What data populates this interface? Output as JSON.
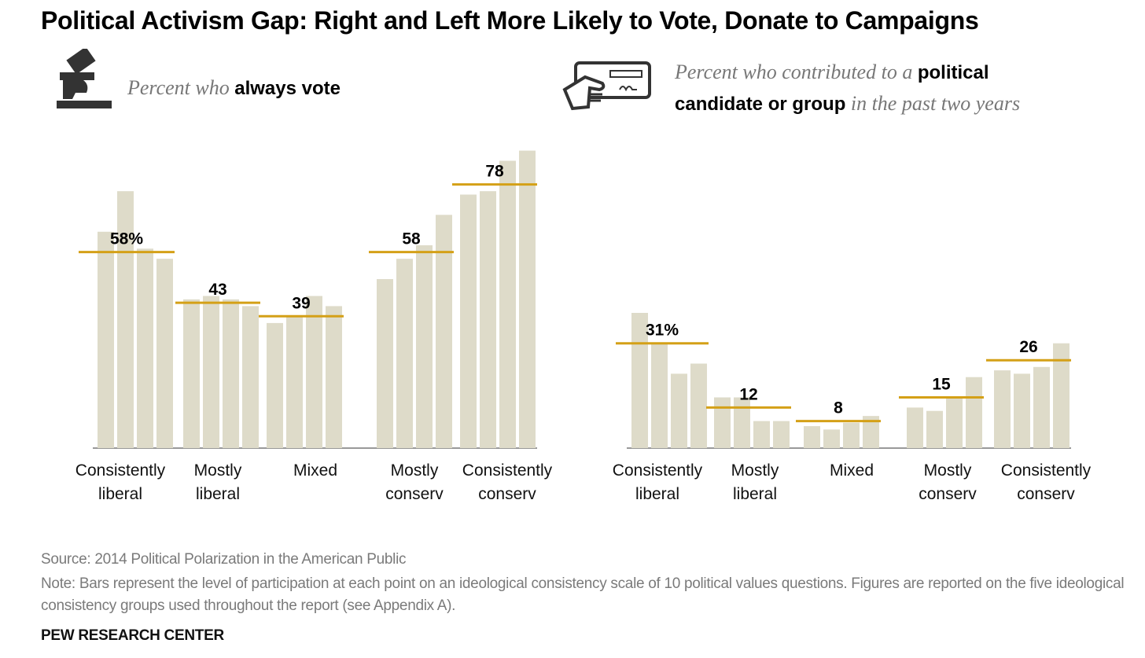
{
  "title": "Political Activism Gap: Right and Left More Likely to Vote, Donate to Campaigns",
  "icons": {
    "left": "ballot-vote-icon",
    "right": "check-contribution-icon"
  },
  "colors": {
    "bar": "#dedbc9",
    "highlight": "#d4a017",
    "axis": "#999999",
    "foot": "#7a7a7a"
  },
  "subtitles": {
    "left": {
      "pre": "Percent who ",
      "bold": "always vote"
    },
    "right": {
      "pre": "Percent who contributed to a ",
      "bold1": "political",
      "bold2": "candidate or group",
      "post": " in the past two years"
    }
  },
  "chart_data": [
    {
      "type": "bar",
      "title": "Percent who always vote",
      "groups": [
        {
          "label": [
            "Consistently",
            "liberal"
          ],
          "value_label": "58%",
          "value": 58,
          "bars": [
            64,
            76,
            59,
            56
          ]
        },
        {
          "label": [
            "Mostly",
            "liberal"
          ],
          "value_label": "43",
          "value": 43,
          "bars": [
            44,
            45,
            44,
            42
          ]
        },
        {
          "label": [
            "Mixed"
          ],
          "value_label": "39",
          "value": 39,
          "bars": [
            37,
            39,
            45,
            42
          ]
        },
        {
          "label": [
            "Mostly",
            "conserv"
          ],
          "value_label": "58",
          "value": 58,
          "bars": [
            50,
            56,
            60,
            69
          ]
        },
        {
          "label": [
            "Consistently",
            "conserv"
          ],
          "value_label": "78",
          "value": 78,
          "bars": [
            75,
            76,
            85,
            88
          ]
        }
      ]
    },
    {
      "type": "bar",
      "title": "Percent who contributed to a political candidate or group in the past two years",
      "groups": [
        {
          "label": [
            "Consistently",
            "liberal"
          ],
          "value_label": "31%",
          "value": 31,
          "bars": [
            40,
            31,
            22,
            25
          ]
        },
        {
          "label": [
            "Mostly",
            "liberal"
          ],
          "value_label": "12",
          "value": 12,
          "bars": [
            15,
            15,
            8,
            8
          ]
        },
        {
          "label": [
            "Mixed"
          ],
          "value_label": "8",
          "value": 8,
          "bars": [
            6.5,
            5.5,
            7.5,
            9.5
          ]
        },
        {
          "label": [
            "Mostly",
            "conserv"
          ],
          "value_label": "15",
          "value": 15,
          "bars": [
            12,
            11,
            15,
            21
          ]
        },
        {
          "label": [
            "Consistently",
            "conserv"
          ],
          "value_label": "26",
          "value": 26,
          "bars": [
            23,
            22,
            24,
            31
          ]
        }
      ]
    }
  ],
  "footer": {
    "source": "Source: 2014 Political Polarization in the American Public",
    "note": "Note: Bars represent the level of participation at each point on an ideological consistency scale of 10 political values questions. Figures are reported on the five ideological consistency groups used throughout the report (see Appendix A).",
    "brand": "PEW RESEARCH CENTER"
  }
}
